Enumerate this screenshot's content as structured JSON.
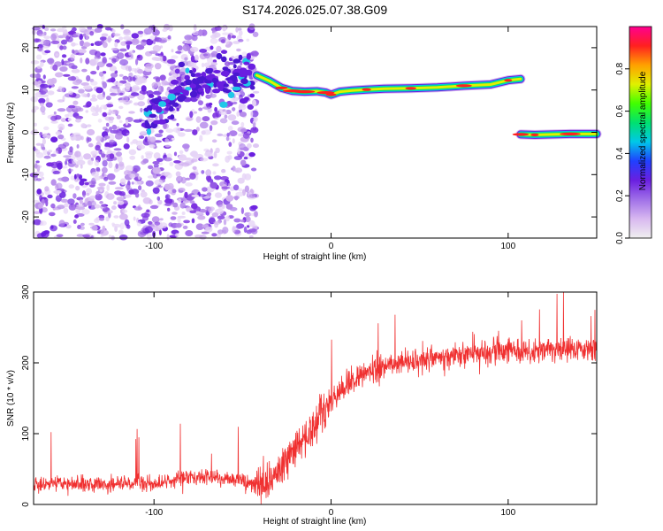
{
  "title": "S174.2026.025.07.38.G09",
  "chart_data": [
    {
      "type": "heatmap",
      "xlabel": "Height of straight line (km)",
      "ylabel": "Frequency (Hz)",
      "xlim": [
        -168,
        150
      ],
      "ylim": [
        -25,
        25
      ],
      "xticks": [
        -100,
        0,
        100
      ],
      "yticks": [
        -20,
        -10,
        0,
        10,
        20
      ],
      "grid": false,
      "colorbar": {
        "label": "Normalized spectral amplitude",
        "range": [
          0,
          1
        ],
        "ticks": [
          0.0,
          0.2,
          0.4,
          0.6,
          0.8
        ],
        "tick_labels": [
          "0.0",
          "0.2",
          "0.4",
          "0.6",
          "0.8"
        ],
        "colormap": [
          "#f0f0f0",
          "#d8b8f0",
          "#a070e8",
          "#6a1fe0",
          "#2040ff",
          "#00c8e8",
          "#00e070",
          "#40ff00",
          "#e0f000",
          "#ffa000",
          "#ff2020",
          "#ff0090"
        ]
      },
      "track": {
        "segments": [
          {
            "x": [
              -42,
              -35,
              -28,
              -22,
              -15,
              -8,
              -3,
              0,
              5,
              12,
              20,
              30,
              45,
              60,
              75,
              90,
              100,
              107
            ],
            "y": [
              13.5,
              12.2,
              10.5,
              9.8,
              9.6,
              9.7,
              9.4,
              8.9,
              9.6,
              9.9,
              10.1,
              10.3,
              10.4,
              10.6,
              11.0,
              11.3,
              12.3,
              12.6
            ]
          },
          {
            "x": [
              107,
              115,
              125,
              135,
              150
            ],
            "y": [
              -0.5,
              -0.6,
              -0.5,
              -0.4,
              -0.4
            ]
          }
        ]
      }
    },
    {
      "type": "line",
      "xlabel": "Height of straight line (km)",
      "ylabel": "SNR (10 * v/v)",
      "xlim": [
        -168,
        150
      ],
      "ylim": [
        0,
        300
      ],
      "xticks": [
        -100,
        0,
        100
      ],
      "yticks": [
        0,
        100,
        200,
        300
      ],
      "grid": false,
      "series": [
        {
          "color": "#f03030",
          "envelope_x": [
            -168,
            -100,
            -80,
            -55,
            -42,
            -35,
            -25,
            -15,
            -5,
            5,
            15,
            25,
            40,
            60,
            80,
            100,
            120,
            150
          ],
          "envelope_y": [
            28,
            30,
            40,
            35,
            28,
            30,
            65,
            95,
            130,
            160,
            180,
            190,
            200,
            208,
            213,
            216,
            219,
            221
          ]
        }
      ]
    }
  ]
}
